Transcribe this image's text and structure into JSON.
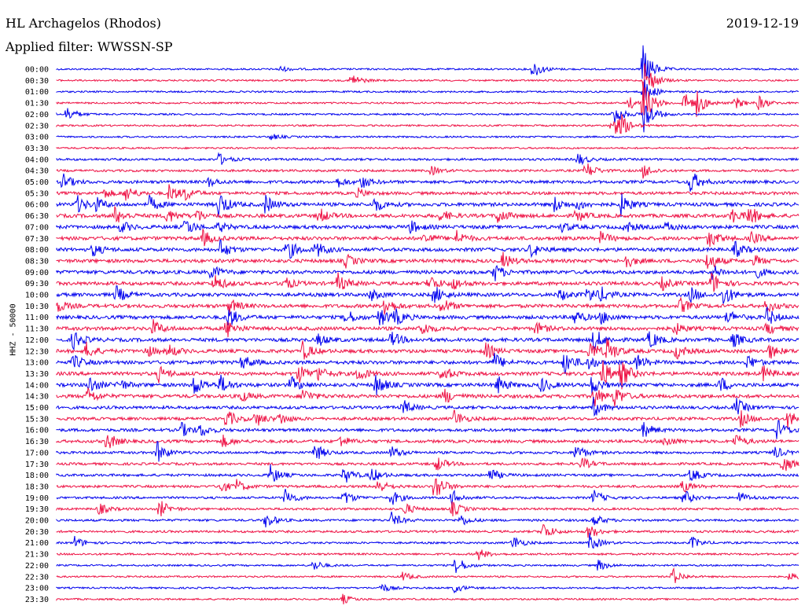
{
  "header": {
    "station": "HL Archagelos (Rhodos)",
    "date": "2019-12-19",
    "filter": "Applied filter: WWSSN-SP",
    "channel": "HHZ - 50000"
  },
  "colors": {
    "even_hour_trace": "#0000ee",
    "half_hour_trace": "#ee1144"
  },
  "chart_data": {
    "type": "line",
    "title": "HL Archagelos (Rhodos)",
    "subtitle": "Applied filter: WWSSN-SP",
    "ylabel": "HHZ - 50000",
    "xlabel": "",
    "date": "2019-12-19",
    "trace_labels": [
      "00:00",
      "00:30",
      "01:00",
      "01:30",
      "02:00",
      "02:30",
      "03:00",
      "03:30",
      "04:00",
      "04:30",
      "05:00",
      "05:30",
      "06:00",
      "06:30",
      "07:00",
      "07:30",
      "08:00",
      "08:30",
      "09:00",
      "09:30",
      "10:00",
      "10:30",
      "11:00",
      "11:30",
      "12:00",
      "12:30",
      "13:00",
      "13:30",
      "14:00",
      "14:30",
      "15:00",
      "15:30",
      "16:00",
      "16:30",
      "17:00",
      "17:30",
      "18:00",
      "18:30",
      "19:00",
      "19:30",
      "20:00",
      "20:30",
      "21:00",
      "21:30",
      "22:00",
      "22:30",
      "23:00",
      "23:30"
    ],
    "trace_minutes": 30,
    "noise_level": [
      0.3,
      0.3,
      0.3,
      0.3,
      0.3,
      0.3,
      0.3,
      0.3,
      0.5,
      0.5,
      0.8,
      0.8,
      1,
      1,
      1,
      1,
      1,
      1,
      1,
      1,
      1,
      1,
      1,
      1,
      1,
      1,
      1,
      1,
      1,
      1,
      0.8,
      0.8,
      0.8,
      0.8,
      0.6,
      0.6,
      0.6,
      0.6,
      0.5,
      0.5,
      0.5,
      0.5,
      0.4,
      0.4,
      0.3,
      0.3,
      0.3,
      0.3
    ],
    "events_minutes": [
      [],
      [],
      [],
      [],
      [],
      [],
      [],
      [],
      [],
      [],
      [],
      [],
      [],
      [],
      [],
      [],
      [],
      [],
      [],
      [],
      [],
      [],
      [],
      [],
      [],
      [],
      [],
      [],
      [],
      [],
      [],
      [],
      [],
      [],
      [],
      [],
      [],
      [],
      [],
      [],
      [],
      [],
      [],
      [],
      [],
      [],
      [],
      []
    ],
    "events_note": ""
  }
}
